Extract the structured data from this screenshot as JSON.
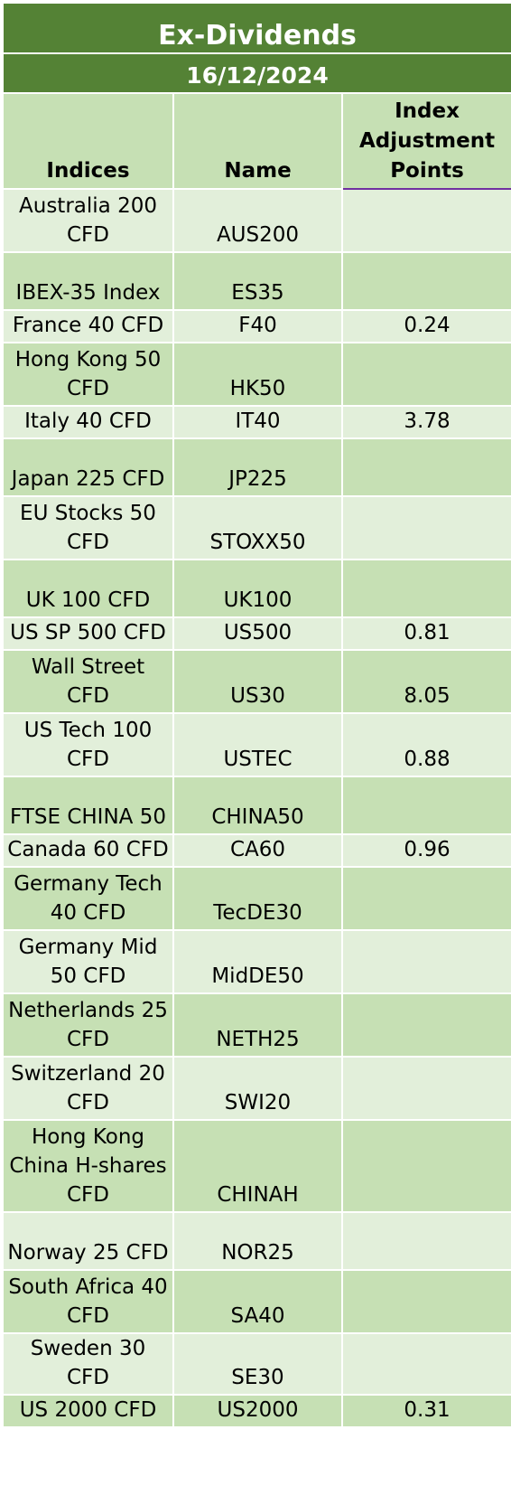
{
  "title": "Ex-Dividends",
  "date": "16/12/2024",
  "headers": {
    "indices": "Indices",
    "name": "Name",
    "adjustment": "Index Adjustment Points"
  },
  "rows": [
    {
      "index": "Australia 200 CFD",
      "name": "AUS200",
      "points": ""
    },
    {
      "index": "IBEX-35 Index",
      "name": "ES35",
      "points": ""
    },
    {
      "index": "France 40 CFD",
      "name": "F40",
      "points": "0.24"
    },
    {
      "index": "Hong Kong 50 CFD",
      "name": "HK50",
      "points": ""
    },
    {
      "index": "Italy 40 CFD",
      "name": "IT40",
      "points": "3.78"
    },
    {
      "index": "Japan 225 CFD",
      "name": "JP225",
      "points": ""
    },
    {
      "index": "EU Stocks 50 CFD",
      "name": "STOXX50",
      "points": ""
    },
    {
      "index": "UK 100 CFD",
      "name": "UK100",
      "points": ""
    },
    {
      "index": "US SP 500 CFD",
      "name": "US500",
      "points": "0.81"
    },
    {
      "index": "Wall Street CFD",
      "name": "US30",
      "points": "8.05"
    },
    {
      "index": "US Tech 100 CFD",
      "name": "USTEC",
      "points": "0.88"
    },
    {
      "index": "FTSE CHINA 50",
      "name": "CHINA50",
      "points": ""
    },
    {
      "index": "Canada 60 CFD",
      "name": "CA60",
      "points": "0.96"
    },
    {
      "index": "Germany Tech 40 CFD",
      "name": "TecDE30",
      "points": ""
    },
    {
      "index": "Germany Mid 50 CFD",
      "name": "MidDE50",
      "points": ""
    },
    {
      "index": "Netherlands 25 CFD",
      "name": "NETH25",
      "points": ""
    },
    {
      "index": "Switzerland 20 CFD",
      "name": "SWI20",
      "points": ""
    },
    {
      "index": "Hong Kong China H-shares CFD",
      "name": "CHINAH",
      "points": ""
    },
    {
      "index": "Norway 25 CFD",
      "name": "NOR25",
      "points": ""
    },
    {
      "index": "South Africa 40 CFD",
      "name": "SA40",
      "points": ""
    },
    {
      "index": "Sweden 30 CFD",
      "name": "SE30",
      "points": ""
    },
    {
      "index": "US 2000 CFD",
      "name": "US2000",
      "points": "0.31"
    }
  ]
}
